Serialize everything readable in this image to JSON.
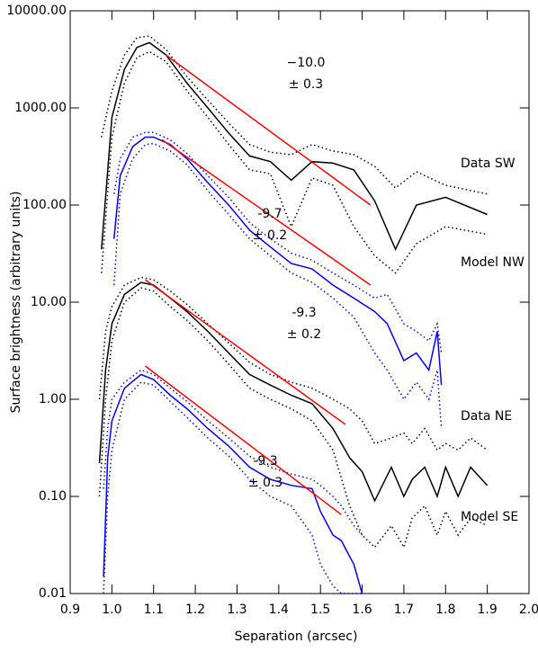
{
  "chart_data": {
    "type": "line",
    "xlabel": "Separation (arcsec)",
    "ylabel": "Surface brightness (arbitrary units)",
    "xlim": [
      0.9,
      2.0
    ],
    "ylim": [
      0.01,
      10000
    ],
    "log_y": true,
    "xticks": [
      0.9,
      {
        "value": 1.0,
        "label": "1.0"
      },
      1.1,
      1.2,
      1.3,
      1.4,
      1.5,
      1.6,
      1.7,
      1.8,
      1.9,
      {
        "value": 2.0,
        "label": "2.0"
      }
    ],
    "yticks": [
      {
        "value": 10000,
        "label": "10000.00"
      },
      {
        "value": 1000,
        "label": "1000.00"
      },
      {
        "value": 100,
        "label": "100.00"
      },
      {
        "value": 10,
        "label": "10.00"
      },
      {
        "value": 1,
        "label": "1.00"
      },
      {
        "value": 0.1,
        "label": "0.10"
      },
      {
        "value": 0.01,
        "label": "0.01"
      }
    ],
    "series": [
      {
        "name": "Data SW",
        "color": "#000000",
        "x": [
          0.975,
          1.0,
          1.03,
          1.06,
          1.09,
          1.13,
          1.18,
          1.23,
          1.28,
          1.33,
          1.38,
          1.43,
          1.48,
          1.53,
          1.58,
          1.63,
          1.68,
          1.73,
          1.8,
          1.9
        ],
        "values": [
          35,
          800,
          2500,
          4200,
          4700,
          3500,
          1800,
          1000,
          550,
          320,
          280,
          180,
          280,
          270,
          230,
          110,
          35,
          100,
          120,
          80
        ],
        "upper": [
          500,
          1500,
          3500,
          5300,
          5500,
          4000,
          2100,
          1200,
          700,
          420,
          350,
          330,
          420,
          360,
          330,
          250,
          150,
          220,
          160,
          130
        ],
        "lower": [
          20,
          500,
          1800,
          3300,
          3800,
          3000,
          1500,
          800,
          420,
          230,
          210,
          60,
          190,
          160,
          60,
          30,
          20,
          40,
          60,
          50
        ]
      },
      {
        "name": "Model NW",
        "color": "#0000ff",
        "x": [
          1.005,
          1.02,
          1.05,
          1.08,
          1.1,
          1.14,
          1.18,
          1.23,
          1.28,
          1.33,
          1.38,
          1.43,
          1.48,
          1.53,
          1.58,
          1.63,
          1.66,
          1.7,
          1.73,
          1.76,
          1.78,
          1.79
        ],
        "values": [
          45,
          200,
          400,
          500,
          500,
          420,
          300,
          170,
          100,
          55,
          37,
          25,
          22,
          15,
          11,
          8,
          6,
          2.5,
          3,
          2,
          5,
          1.4
        ],
        "upper": [
          130,
          300,
          500,
          560,
          560,
          470,
          340,
          200,
          120,
          66,
          45,
          32,
          27,
          20,
          15,
          11,
          12,
          6,
          5,
          4,
          6,
          3
        ],
        "lower": [
          15,
          130,
          300,
          420,
          430,
          360,
          260,
          140,
          80,
          45,
          30,
          20,
          16,
          11,
          7,
          3,
          2,
          1,
          1.5,
          1,
          2,
          0.5
        ]
      },
      {
        "name": "Data NE",
        "color": "#000000",
        "x": [
          0.97,
          0.985,
          1.0,
          1.03,
          1.07,
          1.1,
          1.14,
          1.18,
          1.23,
          1.28,
          1.33,
          1.38,
          1.43,
          1.48,
          1.53,
          1.57,
          1.6,
          1.63,
          1.67,
          1.7,
          1.72,
          1.75,
          1.78,
          1.8,
          1.83,
          1.86,
          1.9
        ],
        "values": [
          0.22,
          2,
          6,
          12,
          16,
          15,
          11,
          8,
          5,
          3,
          1.8,
          1.4,
          1.1,
          0.9,
          0.5,
          0.25,
          0.18,
          0.09,
          0.2,
          0.1,
          0.15,
          0.2,
          0.1,
          0.2,
          0.1,
          0.2,
          0.13
        ],
        "upper": [
          1,
          5,
          9,
          15,
          18,
          17,
          13,
          9.5,
          6,
          3.8,
          2.4,
          1.8,
          1.5,
          1.3,
          1,
          0.8,
          0.6,
          0.35,
          0.4,
          0.45,
          0.35,
          0.5,
          0.3,
          0.35,
          0.3,
          0.4,
          0.3
        ],
        "lower": [
          0.1,
          1,
          4,
          10,
          14,
          13,
          9,
          6.5,
          4,
          2.3,
          1.3,
          1,
          0.8,
          0.6,
          0.3,
          0.08,
          0.04,
          0.03,
          0.05,
          0.03,
          0.06,
          0.08,
          0.04,
          0.07,
          0.04,
          0.06,
          0.05
        ]
      },
      {
        "name": "Model SE",
        "color": "#0000ff",
        "x": [
          0.98,
          0.99,
          1.0,
          1.03,
          1.07,
          1.1,
          1.14,
          1.18,
          1.23,
          1.28,
          1.33,
          1.38,
          1.43,
          1.48,
          1.5,
          1.53,
          1.55,
          1.58,
          1.6
        ],
        "values": [
          0.015,
          0.25,
          0.6,
          1.3,
          1.8,
          1.6,
          1.1,
          0.8,
          0.5,
          0.33,
          0.2,
          0.15,
          0.13,
          0.12,
          0.07,
          0.04,
          0.035,
          0.02,
          0.01
        ],
        "upper": [
          0.12,
          0.5,
          1,
          1.5,
          2,
          1.8,
          1.3,
          0.95,
          0.6,
          0.4,
          0.26,
          0.2,
          0.17,
          0.15,
          0.13,
          0.1,
          0.08,
          0.05,
          0.04
        ],
        "lower": [
          0.01,
          0.1,
          0.3,
          1,
          1.5,
          1.4,
          0.95,
          0.65,
          0.4,
          0.26,
          0.15,
          0.1,
          0.08,
          0.04,
          0.02,
          0.012,
          0.01,
          0.01,
          0.01
        ]
      }
    ],
    "fits": [
      {
        "color": "#ff0000",
        "x": [
          1.13,
          1.62
        ],
        "values": [
          3500,
          100
        ],
        "label": [
          "−10.0",
          "± 0.3"
        ]
      },
      {
        "color": "#ff0000",
        "x": [
          1.12,
          1.62
        ],
        "values": [
          470,
          15
        ],
        "label": [
          "-9.7",
          "± 0.2"
        ]
      },
      {
        "color": "#ff0000",
        "x": [
          1.08,
          1.56
        ],
        "values": [
          17,
          0.55
        ],
        "label": [
          "-9.3",
          "± 0.2"
        ]
      },
      {
        "color": "#ff0000",
        "x": [
          1.08,
          1.55
        ],
        "values": [
          2.2,
          0.065
        ],
        "label": [
          "-9.3",
          "± 0.3"
        ]
      }
    ]
  }
}
